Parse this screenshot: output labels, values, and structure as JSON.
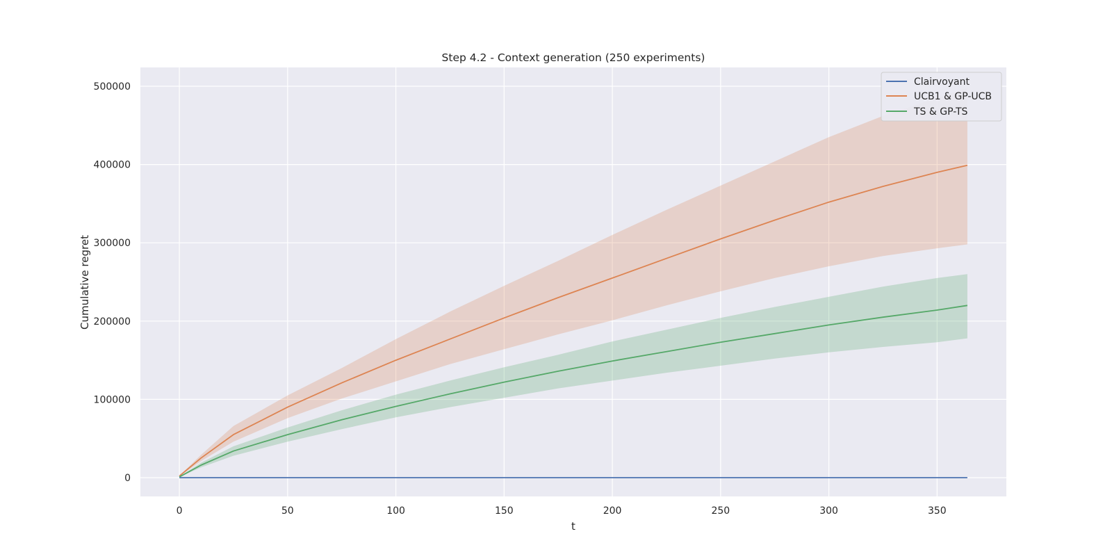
{
  "chart_data": {
    "type": "line",
    "title": "Step 4.2 - Context generation (250 experiments)",
    "xlabel": "t",
    "ylabel": "Cumulative regret",
    "xlim": [
      -18,
      382
    ],
    "ylim": [
      -24000,
      524000
    ],
    "x_ticks": [
      0,
      50,
      100,
      150,
      200,
      250,
      300,
      350
    ],
    "y_ticks": [
      0,
      100000,
      200000,
      300000,
      400000,
      500000
    ],
    "grid": true,
    "background": "#eaeaf2",
    "legend_position": "top-right",
    "x": [
      0,
      10,
      25,
      50,
      75,
      100,
      125,
      150,
      175,
      200,
      225,
      250,
      275,
      300,
      325,
      350,
      364
    ],
    "series": [
      {
        "name": "Clairvoyant",
        "color": "#4c72b0",
        "values": [
          0,
          0,
          0,
          0,
          0,
          0,
          0,
          0,
          0,
          0,
          0,
          0,
          0,
          0,
          0,
          0,
          0
        ]
      },
      {
        "name": "UCB1 & GP-UCB",
        "color": "#dd8452",
        "values": [
          2000,
          25000,
          55000,
          90000,
          121000,
          150000,
          177000,
          204000,
          230000,
          255000,
          280000,
          305000,
          329000,
          352000,
          372000,
          390000,
          399000
        ],
        "lower": [
          1500,
          21000,
          46000,
          76000,
          101000,
          123000,
          145000,
          164000,
          183000,
          201000,
          220000,
          238000,
          255000,
          270000,
          283000,
          293000,
          298000
        ],
        "upper": [
          2500,
          29000,
          66000,
          105000,
          140000,
          177000,
          212000,
          245000,
          277000,
          310000,
          342000,
          373000,
          404000,
          435000,
          462000,
          485000,
          498000
        ]
      },
      {
        "name": "TS & GP-TS",
        "color": "#55a868",
        "values": [
          1000,
          16000,
          34000,
          55000,
          74000,
          91000,
          107000,
          122000,
          136000,
          149000,
          161000,
          173000,
          184000,
          195000,
          205000,
          214000,
          220000
        ],
        "lower": [
          800,
          13000,
          28000,
          46000,
          62000,
          77000,
          90000,
          102000,
          114000,
          124000,
          134000,
          143000,
          152000,
          160000,
          167000,
          173000,
          178000
        ],
        "upper": [
          1200,
          19000,
          40000,
          64000,
          86000,
          106000,
          124000,
          141000,
          157000,
          174000,
          189000,
          204000,
          218000,
          231000,
          244000,
          255000,
          260000
        ]
      }
    ]
  }
}
